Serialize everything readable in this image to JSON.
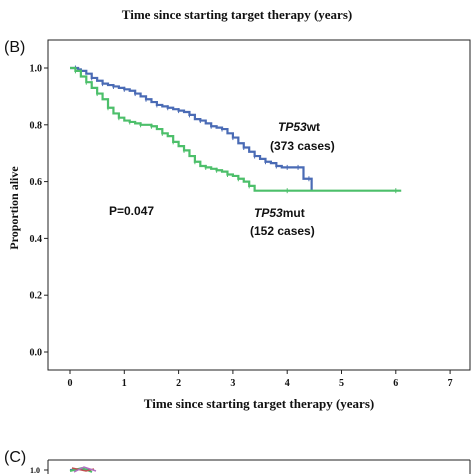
{
  "top_caption": "Time since starting target therapy (years)",
  "panel_b_label": "(B)",
  "panel_c_label": "(C)",
  "panel_c_tick": "1.0",
  "chart_data": {
    "type": "line",
    "xlabel": "Time since starting target therapy (years)",
    "ylabel": "Proportion alive",
    "xlim": [
      0,
      7
    ],
    "ylim": [
      0,
      1.0
    ],
    "x_ticks": [
      "0",
      "1",
      "2",
      "3",
      "4",
      "5",
      "6",
      "7"
    ],
    "y_ticks": [
      "0.0",
      "0.2",
      "0.4",
      "0.6",
      "0.8",
      "1.0"
    ],
    "p_value": "P=0.047",
    "series": [
      {
        "name_italic": "TP53",
        "name_suffix": "wt",
        "cases": "(373 cases)",
        "color": "#4a6bb5",
        "points": [
          [
            0,
            1.0
          ],
          [
            0.1,
            1.0
          ],
          [
            0.15,
            0.995
          ],
          [
            0.2,
            0.99
          ],
          [
            0.3,
            0.98
          ],
          [
            0.4,
            0.965
          ],
          [
            0.5,
            0.955
          ],
          [
            0.6,
            0.945
          ],
          [
            0.7,
            0.94
          ],
          [
            0.8,
            0.935
          ],
          [
            0.9,
            0.93
          ],
          [
            1.0,
            0.925
          ],
          [
            1.1,
            0.92
          ],
          [
            1.2,
            0.91
          ],
          [
            1.3,
            0.9
          ],
          [
            1.4,
            0.89
          ],
          [
            1.5,
            0.88
          ],
          [
            1.6,
            0.87
          ],
          [
            1.7,
            0.865
          ],
          [
            1.8,
            0.86
          ],
          [
            1.9,
            0.855
          ],
          [
            2.0,
            0.85
          ],
          [
            2.1,
            0.845
          ],
          [
            2.2,
            0.835
          ],
          [
            2.3,
            0.82
          ],
          [
            2.4,
            0.815
          ],
          [
            2.5,
            0.805
          ],
          [
            2.6,
            0.795
          ],
          [
            2.7,
            0.79
          ],
          [
            2.8,
            0.785
          ],
          [
            2.9,
            0.77
          ],
          [
            3.0,
            0.755
          ],
          [
            3.1,
            0.735
          ],
          [
            3.2,
            0.72
          ],
          [
            3.3,
            0.705
          ],
          [
            3.4,
            0.69
          ],
          [
            3.5,
            0.68
          ],
          [
            3.6,
            0.67
          ],
          [
            3.7,
            0.665
          ],
          [
            3.8,
            0.655
          ],
          [
            3.9,
            0.65
          ],
          [
            4.0,
            0.65
          ],
          [
            4.1,
            0.65
          ],
          [
            4.2,
            0.65
          ],
          [
            4.3,
            0.61
          ],
          [
            4.4,
            0.61
          ],
          [
            4.45,
            0.568
          ]
        ]
      },
      {
        "name_italic": "TP53",
        "name_suffix": "mut",
        "cases": "(152 cases)",
        "color": "#4cbf6a",
        "points": [
          [
            0,
            1.0
          ],
          [
            0.1,
            0.99
          ],
          [
            0.2,
            0.97
          ],
          [
            0.3,
            0.95
          ],
          [
            0.4,
            0.93
          ],
          [
            0.5,
            0.91
          ],
          [
            0.6,
            0.89
          ],
          [
            0.7,
            0.86
          ],
          [
            0.8,
            0.84
          ],
          [
            0.9,
            0.825
          ],
          [
            1.0,
            0.815
          ],
          [
            1.1,
            0.81
          ],
          [
            1.2,
            0.805
          ],
          [
            1.3,
            0.8
          ],
          [
            1.4,
            0.8
          ],
          [
            1.5,
            0.795
          ],
          [
            1.6,
            0.785
          ],
          [
            1.7,
            0.77
          ],
          [
            1.8,
            0.76
          ],
          [
            1.9,
            0.74
          ],
          [
            2.0,
            0.725
          ],
          [
            2.1,
            0.71
          ],
          [
            2.2,
            0.69
          ],
          [
            2.3,
            0.67
          ],
          [
            2.4,
            0.655
          ],
          [
            2.5,
            0.65
          ],
          [
            2.6,
            0.645
          ],
          [
            2.7,
            0.64
          ],
          [
            2.8,
            0.635
          ],
          [
            2.9,
            0.625
          ],
          [
            3.0,
            0.62
          ],
          [
            3.1,
            0.61
          ],
          [
            3.2,
            0.6
          ],
          [
            3.3,
            0.585
          ],
          [
            3.4,
            0.568
          ],
          [
            4.0,
            0.568
          ],
          [
            5.0,
            0.568
          ],
          [
            6.0,
            0.568
          ],
          [
            6.1,
            0.568
          ]
        ]
      }
    ]
  }
}
